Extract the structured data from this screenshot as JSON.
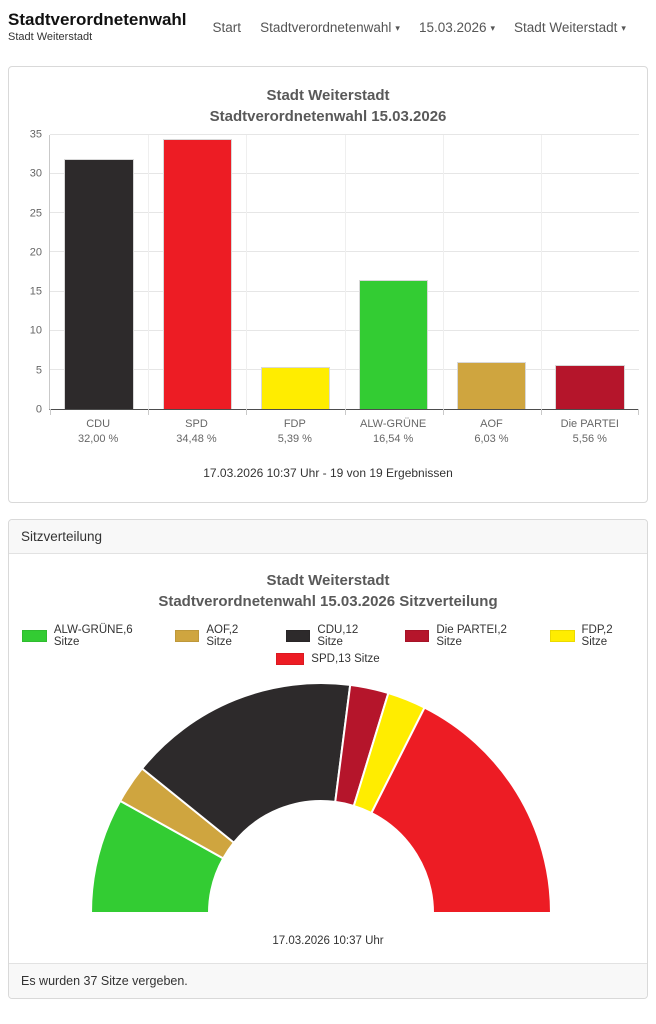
{
  "navbar": {
    "title": "Stadtverordnetenwahl",
    "subtitle": "Stadt Weiterstadt",
    "caret_glyph": "▾",
    "items": [
      {
        "label": "Start",
        "dropdown": false
      },
      {
        "label": "Stadtverordnetenwahl",
        "dropdown": true
      },
      {
        "label": "15.03.2026",
        "dropdown": true
      },
      {
        "label": "Stadt Weiterstadt",
        "dropdown": true
      }
    ]
  },
  "seats_card": {
    "header": "Sitzverteilung",
    "footer_note": "Es wurden 37 Sitze vergeben."
  },
  "chart_data": [
    {
      "type": "bar",
      "title_lines": [
        "Stadt Weiterstadt",
        "Stadtverordnetenwahl 15.03.2026"
      ],
      "categories": [
        "CDU",
        "SPD",
        "FDP",
        "ALW-GRÜNE",
        "AOF",
        "Die PARTEI"
      ],
      "values": [
        32.0,
        34.48,
        5.39,
        16.54,
        6.03,
        5.56
      ],
      "value_labels": [
        "32,00 %",
        "34,48 %",
        "5,39 %",
        "16,54 %",
        "6,03 %",
        "5,56 %"
      ],
      "colors": [
        "#2d2a2b",
        "#ed1c24",
        "#ffed00",
        "#33cc33",
        "#cfa53f",
        "#b5152b"
      ],
      "ylim": [
        0,
        35
      ],
      "yticks": [
        0,
        5,
        10,
        15,
        20,
        25,
        30,
        35
      ],
      "grid": true,
      "legend_position": "none",
      "footnote": "17.03.2026 10:37 Uhr - 19 von 19 Ergebnissen"
    },
    {
      "type": "pie",
      "variant": "half_donut",
      "title_lines": [
        "Stadt Weiterstadt",
        "Stadtverordnetenwahl 15.03.2026 Sitzverteilung"
      ],
      "total_seats": 37,
      "slices": [
        {
          "party": "ALW-GRÜNE",
          "seats": 6,
          "color": "#33cc33"
        },
        {
          "party": "AOF",
          "seats": 2,
          "color": "#cfa53f"
        },
        {
          "party": "CDU",
          "seats": 12,
          "color": "#2d2a2b"
        },
        {
          "party": "Die PARTEI",
          "seats": 2,
          "color": "#b5152b"
        },
        {
          "party": "FDP",
          "seats": 2,
          "color": "#ffed00"
        },
        {
          "party": "SPD",
          "seats": 13,
          "color": "#ed1c24"
        }
      ],
      "legend_rows": [
        [
          {
            "party": "ALW-GRÜNE",
            "label": "ALW-GRÜNE,6 Sitze",
            "color": "#33cc33"
          },
          {
            "party": "AOF",
            "label": "AOF,2 Sitze",
            "color": "#cfa53f"
          },
          {
            "party": "CDU",
            "label": "CDU,12 Sitze",
            "color": "#2d2a2b"
          },
          {
            "party": "Die PARTEI",
            "label": "Die PARTEI,2 Sitze",
            "color": "#b5152b"
          },
          {
            "party": "FDP",
            "label": "FDP,2 Sitze",
            "color": "#ffed00"
          }
        ],
        [
          {
            "party": "SPD",
            "label": "SPD,13 Sitze",
            "color": "#ed1c24"
          }
        ]
      ],
      "timestamp": "17.03.2026 10:37 Uhr"
    }
  ]
}
